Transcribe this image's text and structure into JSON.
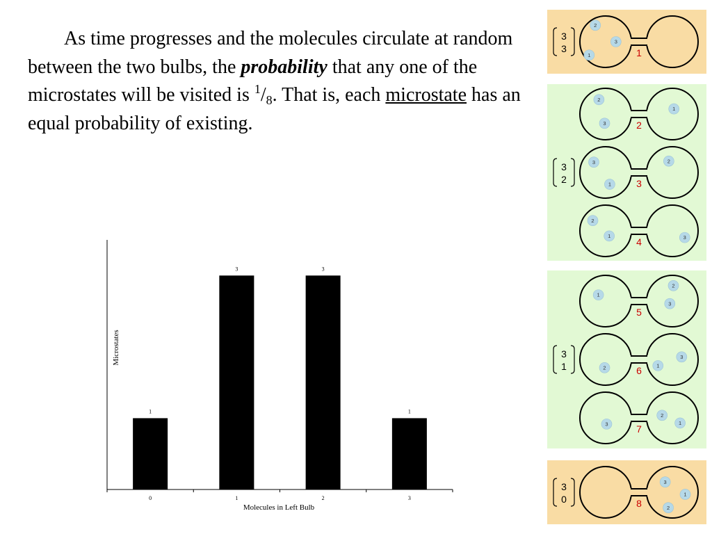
{
  "paragraph": {
    "part1": "As time progresses and the molecules circulate at random between the two bulbs, the ",
    "emphasis": "probability",
    "part2": " that any one of the microstates will be visited is ",
    "frac_num": "1",
    "frac_slash": "/",
    "frac_den": "8",
    "part3": ". That is, each ",
    "underlined": "microstate",
    "part4": " has an equal probability of existing."
  },
  "chart_data": {
    "type": "bar",
    "categories": [
      "0",
      "1",
      "2",
      "3"
    ],
    "values": [
      1,
      3,
      3,
      1
    ],
    "data_labels": [
      "1",
      "3",
      "3",
      "1"
    ],
    "xlabel": "Molecules in Left Bulb",
    "ylabel": "Microstates",
    "ylim": [
      0,
      3.5
    ],
    "bar_color": "#000000",
    "grid": false
  },
  "microstates": [
    {
      "group_color": "#f9dca4",
      "total": "3",
      "left_count": "3",
      "states": [
        {
          "number": "1",
          "molecules": [
            {
              "label": "2",
              "side": "left",
              "fx": 0.3,
              "fy": 0.18
            },
            {
              "label": "3",
              "side": "left",
              "fx": 0.7,
              "fy": 0.5
            },
            {
              "label": "1",
              "side": "left",
              "fx": 0.18,
              "fy": 0.76
            }
          ]
        }
      ]
    },
    {
      "group_color": "#e2f9d4",
      "total": "3",
      "left_count": "2",
      "states": [
        {
          "number": "2",
          "molecules": [
            {
              "label": "2",
              "side": "left",
              "fx": 0.37,
              "fy": 0.22
            },
            {
              "label": "3",
              "side": "left",
              "fx": 0.48,
              "fy": 0.68
            },
            {
              "label": "1",
              "side": "right",
              "fx": 0.53,
              "fy": 0.4
            }
          ]
        },
        {
          "number": "3",
          "molecules": [
            {
              "label": "3",
              "side": "left",
              "fx": 0.27,
              "fy": 0.3
            },
            {
              "label": "1",
              "side": "left",
              "fx": 0.58,
              "fy": 0.73
            },
            {
              "label": "2",
              "side": "right",
              "fx": 0.43,
              "fy": 0.28
            }
          ]
        },
        {
          "number": "4",
          "molecules": [
            {
              "label": "2",
              "side": "left",
              "fx": 0.25,
              "fy": 0.3
            },
            {
              "label": "1",
              "side": "left",
              "fx": 0.57,
              "fy": 0.6
            },
            {
              "label": "3",
              "side": "right",
              "fx": 0.74,
              "fy": 0.63
            }
          ]
        }
      ]
    },
    {
      "group_color": "#e2f9d4",
      "total": "3",
      "left_count": "1",
      "states": [
        {
          "number": "5",
          "molecules": [
            {
              "label": "1",
              "side": "left",
              "fx": 0.36,
              "fy": 0.38
            },
            {
              "label": "2",
              "side": "right",
              "fx": 0.52,
              "fy": 0.2
            },
            {
              "label": "3",
              "side": "right",
              "fx": 0.45,
              "fy": 0.55
            }
          ]
        },
        {
          "number": "6",
          "molecules": [
            {
              "label": "2",
              "side": "left",
              "fx": 0.48,
              "fy": 0.66
            },
            {
              "label": "1",
              "side": "right",
              "fx": 0.22,
              "fy": 0.62
            },
            {
              "label": "3",
              "side": "right",
              "fx": 0.68,
              "fy": 0.45
            }
          ]
        },
        {
          "number": "7",
          "molecules": [
            {
              "label": "3",
              "side": "left",
              "fx": 0.52,
              "fy": 0.62
            },
            {
              "label": "2",
              "side": "right",
              "fx": 0.3,
              "fy": 0.45
            },
            {
              "label": "1",
              "side": "right",
              "fx": 0.65,
              "fy": 0.6
            }
          ]
        }
      ]
    },
    {
      "group_color": "#f9dca4",
      "total": "3",
      "left_count": "0",
      "states": [
        {
          "number": "8",
          "molecules": [
            {
              "label": "3",
              "side": "right",
              "fx": 0.36,
              "fy": 0.3
            },
            {
              "label": "1",
              "side": "right",
              "fx": 0.75,
              "fy": 0.54
            },
            {
              "label": "2",
              "side": "right",
              "fx": 0.42,
              "fy": 0.8
            }
          ]
        }
      ]
    }
  ]
}
